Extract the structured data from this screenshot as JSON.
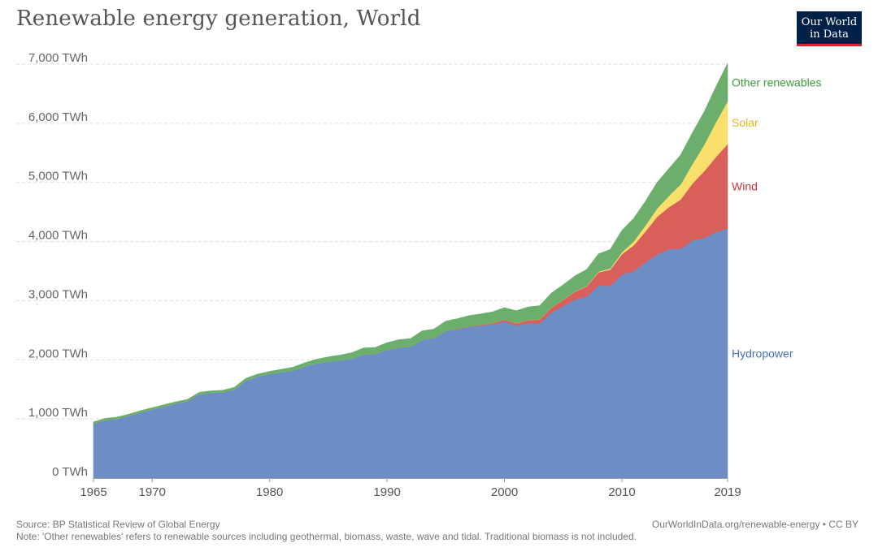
{
  "header": {
    "title": "Renewable energy generation, World",
    "logo_line1": "Our World",
    "logo_line2": "in Data"
  },
  "footer": {
    "source": "Source: BP Statistical Review of Global Energy",
    "credit": "OurWorldInData.org/renewable-energy • CC BY",
    "note": "Note: 'Other renewables' refers to renewable sources including geothermal, biomass, waste, wave and tidal. Traditional biomass is not included."
  },
  "chart_data": {
    "type": "area",
    "stacked": true,
    "title": "Renewable energy generation, World",
    "xlabel": "",
    "ylabel": "",
    "unit": "TWh",
    "xlim": [
      1965,
      2019
    ],
    "ylim": [
      0,
      7000
    ],
    "grid": "horizontal dashed",
    "legend": "inline-right",
    "x_ticks": [
      "1965",
      "1970",
      "1980",
      "1990",
      "2000",
      "2010",
      "2019"
    ],
    "x_tick_values": [
      1965,
      1970,
      1980,
      1990,
      2000,
      2010,
      2019
    ],
    "y_ticks": [
      "0 TWh",
      "1,000 TWh",
      "2,000 TWh",
      "3,000 TWh",
      "4,000 TWh",
      "5,000 TWh",
      "6,000 TWh",
      "7,000 TWh"
    ],
    "y_tick_values": [
      0,
      1000,
      2000,
      3000,
      4000,
      5000,
      6000,
      7000
    ],
    "x": [
      1965,
      1966,
      1967,
      1968,
      1969,
      1970,
      1971,
      1972,
      1973,
      1974,
      1975,
      1976,
      1977,
      1978,
      1979,
      1980,
      1981,
      1982,
      1983,
      1984,
      1985,
      1986,
      1987,
      1988,
      1989,
      1990,
      1991,
      1992,
      1993,
      1994,
      1995,
      1996,
      1997,
      1998,
      1999,
      2000,
      2001,
      2002,
      2003,
      2004,
      2005,
      2006,
      2007,
      2008,
      2009,
      2010,
      2011,
      2012,
      2013,
      2014,
      2015,
      2016,
      2017,
      2018,
      2019
    ],
    "series": [
      {
        "name": "Hydropower",
        "color": "#6d8ec4",
        "values": [
          920,
          980,
          1000,
          1050,
          1110,
          1160,
          1210,
          1260,
          1300,
          1420,
          1440,
          1450,
          1500,
          1650,
          1720,
          1760,
          1790,
          1820,
          1890,
          1940,
          1970,
          1990,
          2020,
          2090,
          2100,
          2170,
          2210,
          2220,
          2340,
          2370,
          2490,
          2520,
          2560,
          2580,
          2600,
          2650,
          2580,
          2620,
          2620,
          2800,
          2910,
          3020,
          3070,
          3260,
          3250,
          3440,
          3500,
          3650,
          3780,
          3870,
          3880,
          4020,
          4060,
          4160,
          4220
        ]
      },
      {
        "name": "Wind",
        "color": "#d9605a",
        "values": [
          0,
          0,
          0,
          0,
          0,
          0,
          0,
          0,
          0,
          0,
          0,
          0,
          0,
          0,
          0,
          0,
          0,
          0,
          0,
          0,
          0,
          0,
          0,
          0,
          0,
          0,
          0,
          0,
          0,
          0,
          4,
          6,
          8,
          12,
          21,
          31,
          38,
          52,
          63,
          85,
          104,
          133,
          170,
          220,
          275,
          346,
          437,
          520,
          640,
          712,
          830,
          960,
          1130,
          1270,
          1430
        ]
      },
      {
        "name": "Solar",
        "color": "#fbdf6d",
        "values": [
          0,
          0,
          0,
          0,
          0,
          0,
          0,
          0,
          0,
          0,
          0,
          0,
          0,
          0,
          0,
          0,
          0,
          0,
          0,
          0,
          0,
          0,
          0,
          0,
          0,
          0,
          0,
          0,
          0,
          0,
          0,
          0,
          0,
          0,
          1,
          1,
          2,
          2,
          3,
          4,
          4,
          6,
          7,
          12,
          20,
          32,
          64,
          100,
          139,
          190,
          256,
          328,
          444,
          585,
          724
        ]
      },
      {
        "name": "Other renewables",
        "color": "#6caf6c",
        "values": [
          30,
          30,
          30,
          30,
          30,
          30,
          30,
          30,
          30,
          30,
          35,
          35,
          35,
          40,
          40,
          45,
          50,
          55,
          60,
          70,
          80,
          90,
          100,
          110,
          110,
          120,
          130,
          140,
          150,
          150,
          160,
          170,
          180,
          185,
          190,
          200,
          210,
          220,
          230,
          240,
          250,
          260,
          280,
          300,
          320,
          370,
          390,
          410,
          440,
          460,
          500,
          530,
          560,
          600,
          640
        ]
      }
    ],
    "labels": [
      {
        "text": "Other renewables",
        "color": "#3e9a3e"
      },
      {
        "text": "Solar",
        "color": "#e0b81e"
      },
      {
        "text": "Wind",
        "color": "#c7363a"
      },
      {
        "text": "Hydropower",
        "color": "#4a6eb3"
      }
    ]
  }
}
